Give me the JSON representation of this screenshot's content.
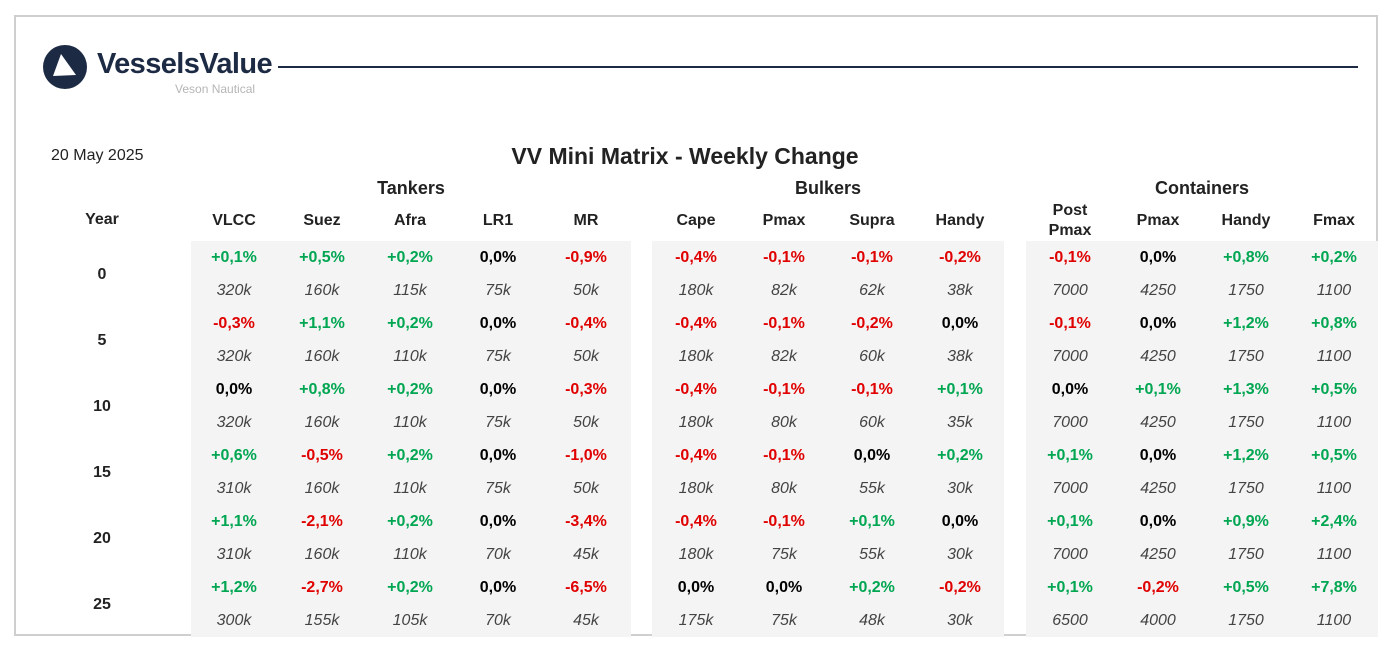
{
  "brand": {
    "name": "VesselsValue",
    "subtitle": "Veson Nautical"
  },
  "date": "20 May 2025",
  "title": "VV Mini Matrix - Weekly Change",
  "groups": [
    "Tankers",
    "Bulkers",
    "Containers"
  ],
  "year_header": "Year",
  "columns": [
    "VLCC",
    "Suez",
    "Afra",
    "LR1",
    "MR",
    "Cape",
    "Pmax",
    "Supra",
    "Handy",
    "Post Pmax",
    "Pmax",
    "Handy",
    "Fmax"
  ],
  "colors": {
    "positive": "#00a651",
    "negative": "#e00000",
    "neutral": "#000000",
    "brand": "#1d2a44"
  },
  "rows": [
    {
      "year": "0",
      "changes": [
        "+0,1%",
        "+0,5%",
        "+0,2%",
        "0,0%",
        "-0,9%",
        "-0,4%",
        "-0,1%",
        "-0,1%",
        "-0,2%",
        "-0,1%",
        "0,0%",
        "+0,8%",
        "+0,2%"
      ],
      "sizes": [
        "320k",
        "160k",
        "115k",
        "75k",
        "50k",
        "180k",
        "82k",
        "62k",
        "38k",
        "7000",
        "4250",
        "1750",
        "1100"
      ]
    },
    {
      "year": "5",
      "changes": [
        "-0,3%",
        "+1,1%",
        "+0,2%",
        "0,0%",
        "-0,4%",
        "-0,4%",
        "-0,1%",
        "-0,2%",
        "0,0%",
        "-0,1%",
        "0,0%",
        "+1,2%",
        "+0,8%"
      ],
      "sizes": [
        "320k",
        "160k",
        "110k",
        "75k",
        "50k",
        "180k",
        "82k",
        "60k",
        "38k",
        "7000",
        "4250",
        "1750",
        "1100"
      ]
    },
    {
      "year": "10",
      "changes": [
        "0,0%",
        "+0,8%",
        "+0,2%",
        "0,0%",
        "-0,3%",
        "-0,4%",
        "-0,1%",
        "-0,1%",
        "+0,1%",
        "0,0%",
        "+0,1%",
        "+1,3%",
        "+0,5%"
      ],
      "sizes": [
        "320k",
        "160k",
        "110k",
        "75k",
        "50k",
        "180k",
        "80k",
        "60k",
        "35k",
        "7000",
        "4250",
        "1750",
        "1100"
      ]
    },
    {
      "year": "15",
      "changes": [
        "+0,6%",
        "-0,5%",
        "+0,2%",
        "0,0%",
        "-1,0%",
        "-0,4%",
        "-0,1%",
        "0,0%",
        "+0,2%",
        "+0,1%",
        "0,0%",
        "+1,2%",
        "+0,5%"
      ],
      "sizes": [
        "310k",
        "160k",
        "110k",
        "75k",
        "50k",
        "180k",
        "80k",
        "55k",
        "30k",
        "7000",
        "4250",
        "1750",
        "1100"
      ]
    },
    {
      "year": "20",
      "changes": [
        "+1,1%",
        "-2,1%",
        "+0,2%",
        "0,0%",
        "-3,4%",
        "-0,4%",
        "-0,1%",
        "+0,1%",
        "0,0%",
        "+0,1%",
        "0,0%",
        "+0,9%",
        "+2,4%"
      ],
      "sizes": [
        "310k",
        "160k",
        "110k",
        "70k",
        "45k",
        "180k",
        "75k",
        "55k",
        "30k",
        "7000",
        "4250",
        "1750",
        "1100"
      ]
    },
    {
      "year": "25",
      "changes": [
        "+1,2%",
        "-2,7%",
        "+0,2%",
        "0,0%",
        "-6,5%",
        "0,0%",
        "0,0%",
        "+0,2%",
        "-0,2%",
        "+0,1%",
        "-0,2%",
        "+0,5%",
        "+7,8%"
      ],
      "sizes": [
        "300k",
        "155k",
        "105k",
        "70k",
        "45k",
        "175k",
        "75k",
        "48k",
        "30k",
        "6500",
        "4000",
        "1750",
        "1100"
      ]
    }
  ]
}
